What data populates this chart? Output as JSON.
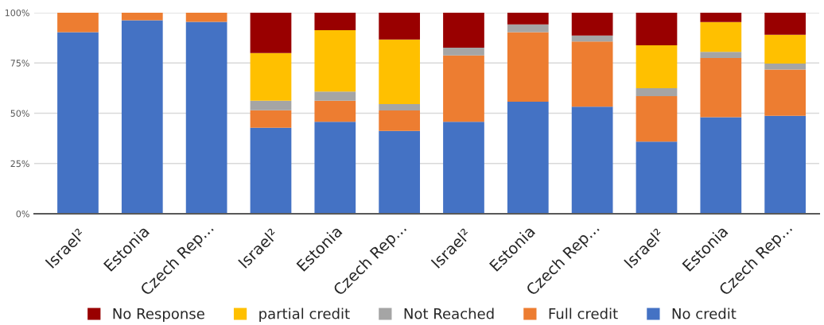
{
  "chart_data": {
    "type": "bar",
    "stacked": true,
    "categories": [
      "Israel²",
      "Estonia",
      "Czech Rep...",
      "Israel²",
      "Estonia",
      "Czech Rep...",
      "Israel²",
      "Estonia",
      "Czech Rep...",
      "Israel²",
      "Estonia",
      "Czech Rep..."
    ],
    "series": [
      {
        "name": "No credit",
        "color": "#4472c4",
        "values": [
          90.3,
          96.2,
          95.5,
          42.8,
          45.8,
          41.2,
          45.8,
          55.7,
          53.3,
          35.9,
          48.0,
          48.7
        ]
      },
      {
        "name": "Full credit",
        "color": "#ed7d31",
        "values": [
          9.7,
          3.8,
          4.5,
          8.7,
          10.4,
          10.2,
          33.0,
          34.6,
          32.4,
          22.6,
          29.5,
          23.0
        ]
      },
      {
        "name": "Not Reached",
        "color": "#a5a5a5",
        "values": [
          null,
          null,
          null,
          4.7,
          4.6,
          3.1,
          3.8,
          3.9,
          2.9,
          4.0,
          3.0,
          3.0
        ]
      },
      {
        "name": "partial credit",
        "color": "#ffc000",
        "values": [
          null,
          null,
          null,
          23.7,
          30.5,
          32.2,
          null,
          null,
          null,
          21.3,
          14.9,
          14.3
        ]
      },
      {
        "name": "No Response",
        "color": "#990000",
        "values": [
          null,
          null,
          null,
          20.1,
          8.7,
          13.3,
          17.4,
          5.8,
          11.4,
          16.2,
          4.6,
          11.0
        ]
      }
    ],
    "ylim": [
      0,
      100
    ],
    "yticks": [
      {
        "value": 0,
        "label": "0%"
      },
      {
        "value": 25,
        "label": "25%"
      },
      {
        "value": 50,
        "label": "50%"
      },
      {
        "value": 75,
        "label": "75%"
      },
      {
        "value": 100,
        "label": "100%"
      }
    ],
    "grid": "y",
    "legend": "bottom"
  }
}
